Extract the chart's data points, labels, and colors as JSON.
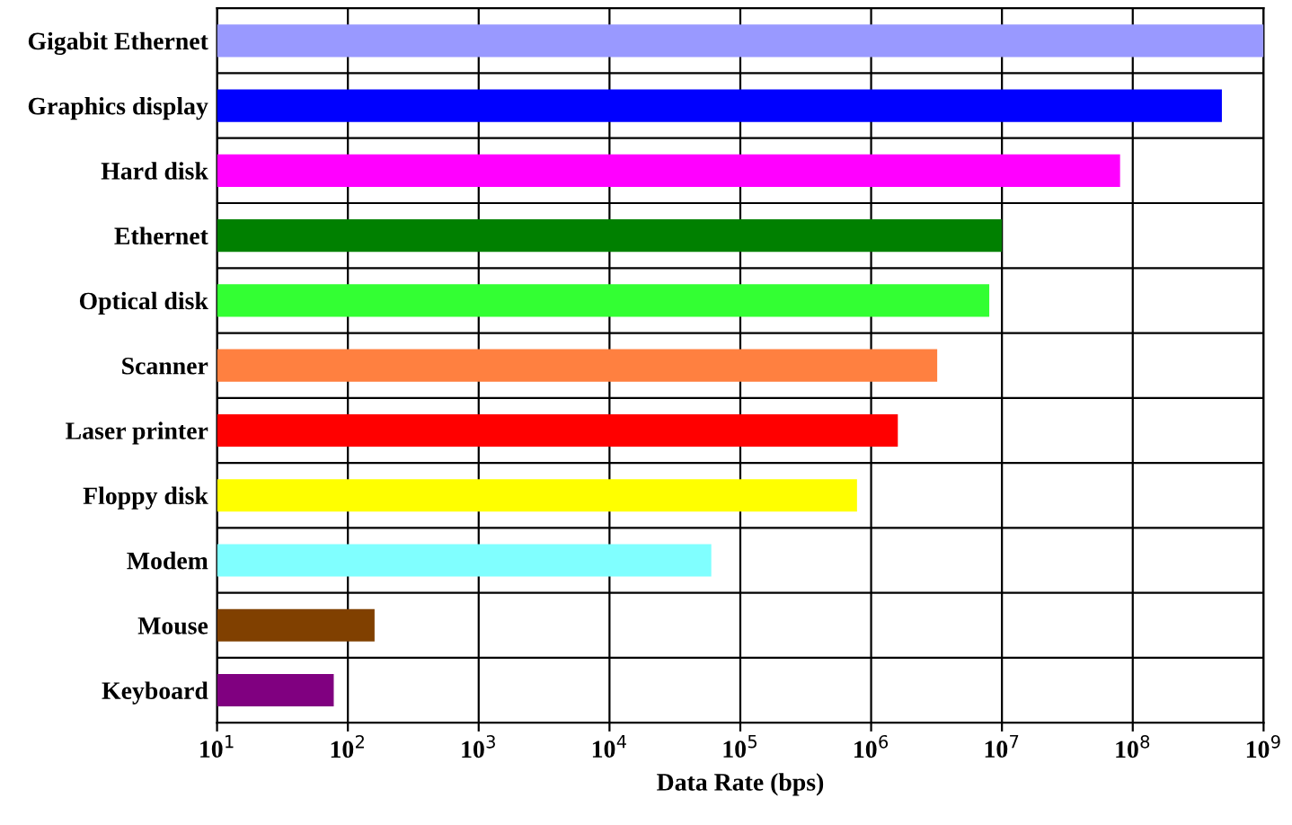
{
  "chart_data": {
    "type": "bar",
    "orientation": "horizontal",
    "xlabel": "Data Rate (bps)",
    "categories": [
      "Gigabit Ethernet",
      "Graphics display",
      "Hard disk",
      "Ethernet",
      "Optical disk",
      "Scanner",
      "Laser printer",
      "Floppy disk",
      "Modem",
      "Mouse",
      "Keyboard"
    ],
    "values": [
      1000000000,
      480000000,
      80000000,
      10000000,
      8000000,
      3200000,
      1600000,
      780000,
      60000,
      160,
      78
    ],
    "colors": [
      "#9999ff",
      "#0000ff",
      "#ff00ff",
      "#008000",
      "#33ff33",
      "#ff8040",
      "#ff0000",
      "#ffff00",
      "#80ffff",
      "#804000",
      "#800080"
    ],
    "log": "x",
    "xlim": [
      10,
      1000000000
    ],
    "xticks": [
      {
        "value": 10,
        "label": "10$^{1}$"
      },
      {
        "value": 100,
        "label": "10$^{2}$"
      },
      {
        "value": 1000,
        "label": "10$^{3}$"
      },
      {
        "value": 10000,
        "label": "10$^{4}$"
      },
      {
        "value": 100000,
        "label": "10$^{5}$"
      },
      {
        "value": 1000000,
        "label": "10$^{6}$"
      },
      {
        "value": 10000000,
        "label": "10$^{7}$"
      },
      {
        "value": 100000000,
        "label": "10$^{8}$"
      },
      {
        "value": 1000000000,
        "label": "10$^{9}$"
      }
    ],
    "grid": true
  }
}
